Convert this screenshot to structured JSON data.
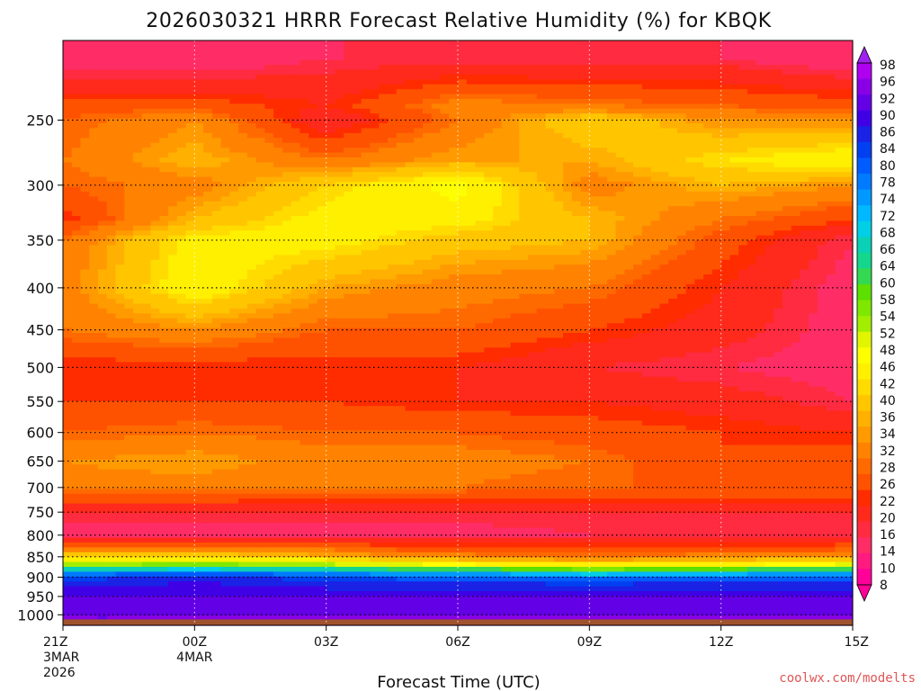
{
  "chart_data": {
    "type": "heatmap",
    "title": "2026030321 HRRR Forecast Relative Humidity (%) for KBQK",
    "xlabel": "Forecast Time (UTC)",
    "ylabel": "",
    "credit": "coolwx.com/modelts",
    "x_ticks": [
      {
        "hour": 0,
        "lines": [
          "21Z",
          "3MAR",
          "2026"
        ]
      },
      {
        "hour": 3,
        "lines": [
          "00Z",
          "4MAR"
        ]
      },
      {
        "hour": 6,
        "lines": [
          "03Z"
        ]
      },
      {
        "hour": 9,
        "lines": [
          "06Z"
        ]
      },
      {
        "hour": 12,
        "lines": [
          "09Z"
        ]
      },
      {
        "hour": 15,
        "lines": [
          "12Z"
        ]
      },
      {
        "hour": 18,
        "lines": [
          "15Z"
        ]
      }
    ],
    "xlim_hours": [
      0,
      18
    ],
    "y_ticks": [
      "250",
      "300",
      "350",
      "400",
      "450",
      "500",
      "550",
      "600",
      "650",
      "700",
      "750",
      "800",
      "850",
      "900",
      "950",
      "1000"
    ],
    "y_tick_values": [
      250,
      300,
      350,
      400,
      450,
      500,
      550,
      600,
      650,
      700,
      750,
      800,
      850,
      900,
      950,
      1000
    ],
    "ylim_hpa": [
      200,
      1030
    ],
    "y_scale": "log-pressure (reversed)",
    "grid": true,
    "colorbar": {
      "levels": [
        "8",
        "10",
        "14",
        "16",
        "20",
        "22",
        "26",
        "28",
        "32",
        "34",
        "36",
        "40",
        "42",
        "46",
        "48",
        "52",
        "54",
        "58",
        "60",
        "64",
        "66",
        "68",
        "72",
        "74",
        "78",
        "80",
        "84",
        "86",
        "90",
        "92",
        "96",
        "98"
      ],
      "level_values": [
        8,
        10,
        14,
        16,
        20,
        22,
        26,
        28,
        32,
        34,
        36,
        40,
        42,
        46,
        48,
        52,
        54,
        58,
        60,
        64,
        66,
        68,
        72,
        74,
        78,
        80,
        84,
        86,
        90,
        92,
        96,
        98
      ],
      "colors": [
        "#ff0099",
        "#ff1a80",
        "#ff2d66",
        "#ff2b40",
        "#ff2a1c",
        "#ff2c00",
        "#ff5200",
        "#ff6a00",
        "#ff8300",
        "#ff9a00",
        "#ffb000",
        "#ffc600",
        "#ffdb00",
        "#fff000",
        "#fdff00",
        "#e2f500",
        "#a3ee00",
        "#7fe800",
        "#5ddf00",
        "#34d852",
        "#14d68c",
        "#0ad0b5",
        "#00cfe6",
        "#00b8ff",
        "#0099ff",
        "#007aff",
        "#005cff",
        "#0040f0",
        "#1a22e6",
        "#4000e6",
        "#6400e6",
        "#8a00e6",
        "#b000f0"
      ],
      "under_color": "#ff0099",
      "over_color": "#a020f0",
      "placement": "right"
    },
    "ground_color": "#a0522d",
    "rh_profiles": [
      {
        "hour": 0,
        "pressure_hpa": [
          210,
          240,
          250,
          280,
          300,
          330,
          350,
          400,
          450,
          500,
          550,
          600,
          650,
          700,
          750,
          800,
          850,
          870,
          890,
          910,
          950,
          1000
        ],
        "rh": [
          10,
          24,
          26,
          28,
          26,
          20,
          28,
          30,
          28,
          20,
          22,
          26,
          32,
          30,
          16,
          12,
          40,
          54,
          78,
          88,
          92,
          96
        ]
      },
      {
        "hour": 3,
        "pressure_hpa": [
          210,
          240,
          250,
          280,
          300,
          330,
          350,
          400,
          450,
          500,
          550,
          600,
          650,
          700,
          750,
          800,
          850,
          870,
          890,
          910,
          950,
          1000
        ],
        "rh": [
          10,
          24,
          32,
          36,
          30,
          36,
          44,
          46,
          32,
          20,
          22,
          28,
          34,
          30,
          16,
          12,
          40,
          56,
          80,
          90,
          92,
          96
        ]
      },
      {
        "hour": 6,
        "pressure_hpa": [
          210,
          240,
          250,
          280,
          300,
          330,
          350,
          400,
          450,
          500,
          550,
          600,
          650,
          700,
          750,
          800,
          850,
          870,
          890,
          910,
          950,
          1000
        ],
        "rh": [
          14,
          20,
          16,
          28,
          40,
          44,
          44,
          34,
          26,
          20,
          22,
          26,
          30,
          28,
          16,
          12,
          36,
          54,
          78,
          88,
          92,
          96
        ]
      },
      {
        "hour": 9,
        "pressure_hpa": [
          210,
          240,
          250,
          280,
          300,
          330,
          350,
          400,
          450,
          500,
          550,
          600,
          650,
          700,
          750,
          800,
          850,
          870,
          890,
          910,
          950,
          1000
        ],
        "rh": [
          14,
          30,
          28,
          34,
          48,
          44,
          38,
          30,
          26,
          20,
          20,
          26,
          30,
          28,
          16,
          12,
          30,
          48,
          74,
          86,
          92,
          96
        ]
      },
      {
        "hour": 12,
        "pressure_hpa": [
          210,
          240,
          250,
          280,
          300,
          330,
          350,
          400,
          450,
          500,
          550,
          600,
          650,
          700,
          750,
          800,
          850,
          870,
          890,
          910,
          950,
          1000
        ],
        "rh": [
          14,
          28,
          40,
          34,
          30,
          36,
          36,
          28,
          22,
          16,
          20,
          24,
          28,
          26,
          16,
          14,
          28,
          44,
          70,
          84,
          92,
          96
        ]
      },
      {
        "hour": 15,
        "pressure_hpa": [
          210,
          240,
          250,
          280,
          300,
          330,
          350,
          400,
          450,
          500,
          550,
          600,
          650,
          700,
          750,
          800,
          850,
          870,
          890,
          910,
          950,
          1000
        ],
        "rh": [
          14,
          26,
          32,
          42,
          36,
          28,
          24,
          20,
          18,
          14,
          18,
          22,
          22,
          26,
          16,
          14,
          30,
          46,
          72,
          86,
          92,
          96
        ]
      },
      {
        "hour": 18,
        "pressure_hpa": [
          210,
          240,
          250,
          280,
          300,
          330,
          350,
          400,
          450,
          500,
          550,
          600,
          650,
          700,
          750,
          800,
          850,
          870,
          890,
          910,
          950,
          1000
        ],
        "rh": [
          10,
          24,
          32,
          46,
          32,
          22,
          14,
          12,
          12,
          12,
          14,
          20,
          24,
          26,
          16,
          14,
          32,
          50,
          74,
          86,
          92,
          96
        ]
      }
    ]
  }
}
